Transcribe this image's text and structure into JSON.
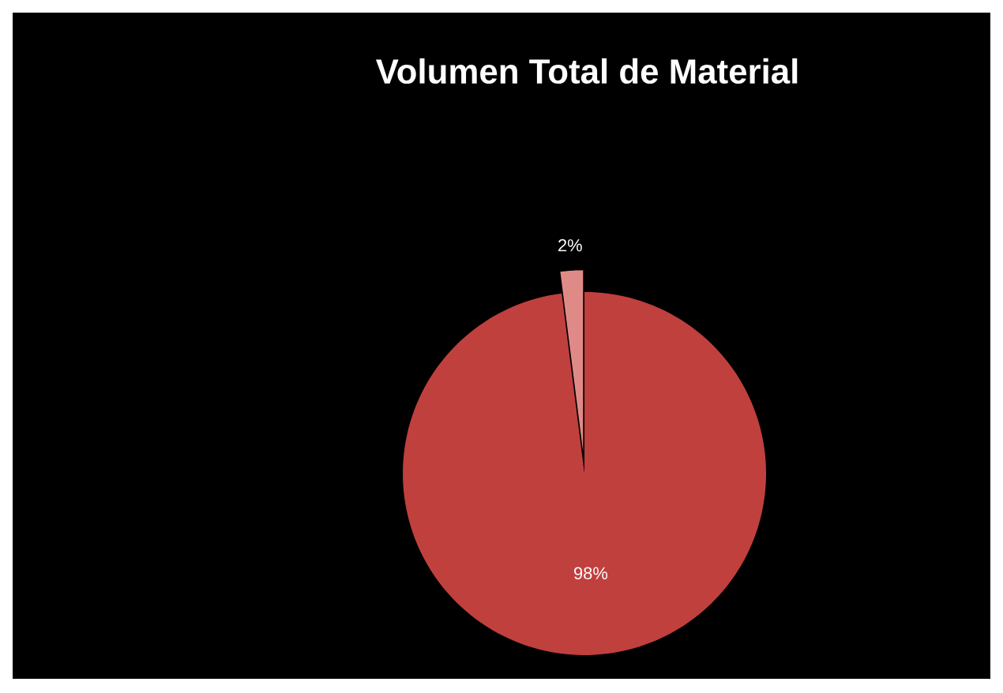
{
  "chart_data": {
    "type": "pie",
    "title": "Volumen Total de Material",
    "categories": [
      null,
      null
    ],
    "values": [
      98,
      2
    ],
    "colors": [
      "#c0403e",
      "#e08a87"
    ],
    "value_labels": [
      "98%",
      "2%"
    ]
  }
}
